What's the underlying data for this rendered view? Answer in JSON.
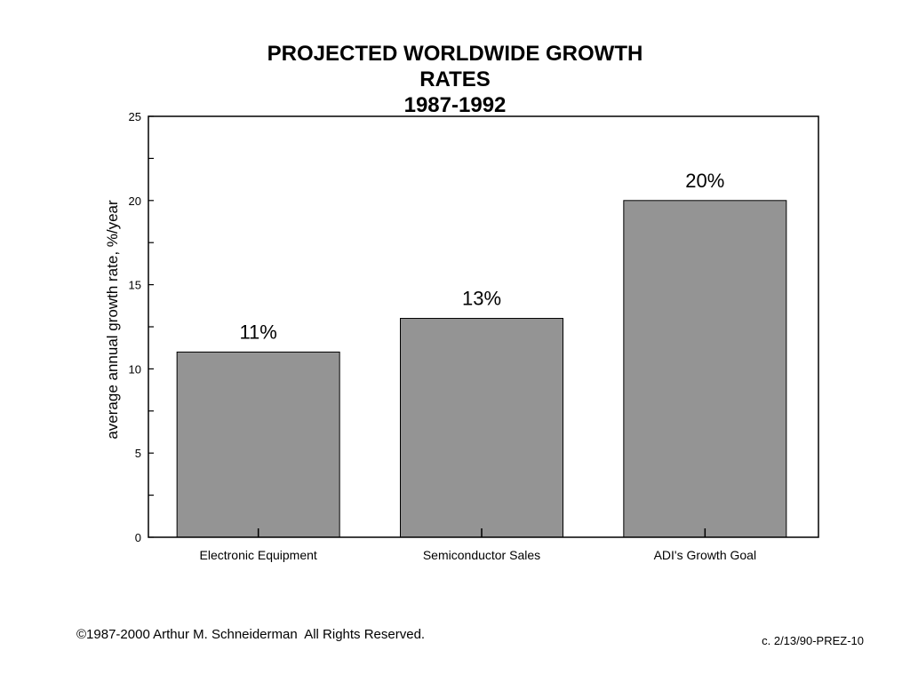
{
  "chart_data": {
    "type": "bar",
    "title_lines": [
      "PROJECTED WORLDWIDE GROWTH",
      "RATES",
      "1987-1992"
    ],
    "ylabel": "average annual growth rate, %/year",
    "xlabel": "",
    "categories": [
      "Electronic Equipment",
      "Semiconductor Sales",
      "ADI's Growth Goal"
    ],
    "values": [
      11,
      13,
      20
    ],
    "data_labels": [
      "11%",
      "13%",
      "20%"
    ],
    "ylim": [
      0,
      25
    ],
    "yticks": [
      0,
      5,
      10,
      15,
      20,
      25
    ],
    "bar_color": "#949494",
    "grid": false,
    "legend": "none"
  },
  "footer": {
    "copyright": "©1987-2000 Arthur M. Schneiderman  All Rights Reserved.",
    "code": "c. 2/13/90-PREZ-10"
  }
}
